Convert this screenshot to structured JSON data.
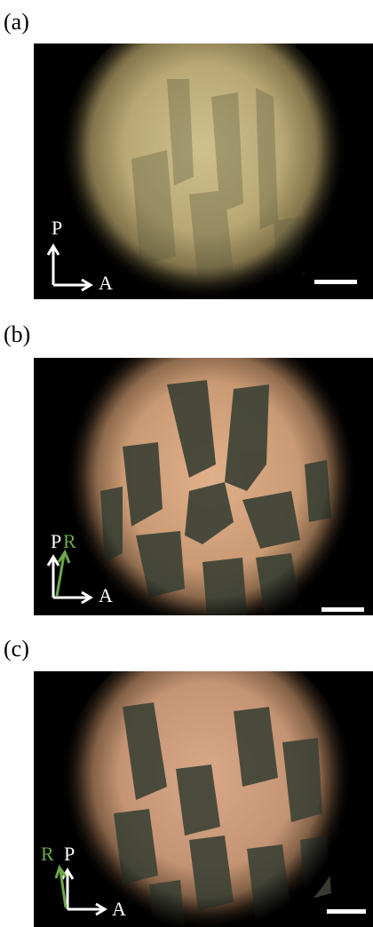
{
  "panels": [
    {
      "label": "(a)",
      "polarizer": "P",
      "analyzer": "A",
      "rotation": ""
    },
    {
      "label": "(b)",
      "polarizer": "P",
      "analyzer": "A",
      "rotation": "R"
    },
    {
      "label": "(c)",
      "polarizer": "P",
      "analyzer": "A",
      "rotation": "R"
    }
  ],
  "colors": {
    "background": "#ffffff",
    "micrograph_bg": "#000000",
    "glow_a": "#cdb88a",
    "glow_bc": "#d6a882",
    "dark_domain": "#3d4236",
    "arrow_white": "#ffffff",
    "arrow_green": "#6ea84a"
  }
}
